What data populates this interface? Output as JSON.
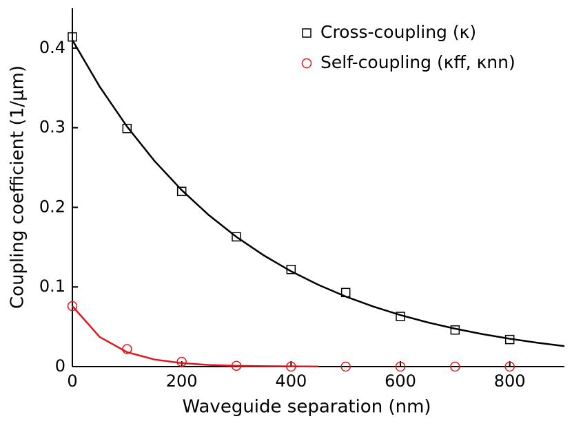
{
  "chart_data": {
    "type": "scatter",
    "xlabel": "Waveguide separation (nm)",
    "ylabel": "Coupling coefficient (1/μm)",
    "xlim": [
      0,
      900
    ],
    "xticks": [
      0,
      200,
      400,
      600,
      800
    ],
    "ylim": [
      0,
      0.45
    ],
    "yticks": [
      0,
      0.1,
      0.2,
      0.3,
      0.4
    ],
    "legend": "upper right",
    "x": [
      0,
      100,
      200,
      300,
      400,
      500,
      600,
      700,
      800
    ],
    "series": [
      {
        "name": "Cross-coupling (κ)",
        "color": "#000000",
        "marker": "square",
        "values": [
          0.414,
          0.299,
          0.22,
          0.163,
          0.122,
          0.093,
          0.063,
          0.046,
          0.034
        ]
      },
      {
        "name": "Self-coupling (κff, κnn)",
        "color": "#e3141b",
        "marker": "circle",
        "values": [
          0.076,
          0.022,
          0.006,
          0.001,
          0,
          0,
          0,
          0,
          0
        ]
      }
    ],
    "fits": [
      {
        "color": "#000000",
        "x": [
          0,
          50,
          100,
          150,
          200,
          250,
          300,
          350,
          400,
          450,
          500,
          550,
          600,
          650,
          700,
          750,
          800,
          850,
          900
        ],
        "values": [
          0.41,
          0.3515,
          0.3014,
          0.2584,
          0.2216,
          0.19,
          0.1629,
          0.1397,
          0.1197,
          0.1027,
          0.088,
          0.0755,
          0.0647,
          0.0555,
          0.0476,
          0.0408,
          0.035,
          0.03,
          0.0257
        ]
      },
      {
        "color": "#e3141b",
        "x": [
          0,
          50,
          100,
          150,
          200,
          250,
          300,
          350,
          400,
          450
        ],
        "values": [
          0.076,
          0.0372,
          0.0182,
          0.0089,
          0.0044,
          0.0021,
          0.001,
          0.0005,
          0.0003,
          0.0001
        ]
      }
    ]
  }
}
